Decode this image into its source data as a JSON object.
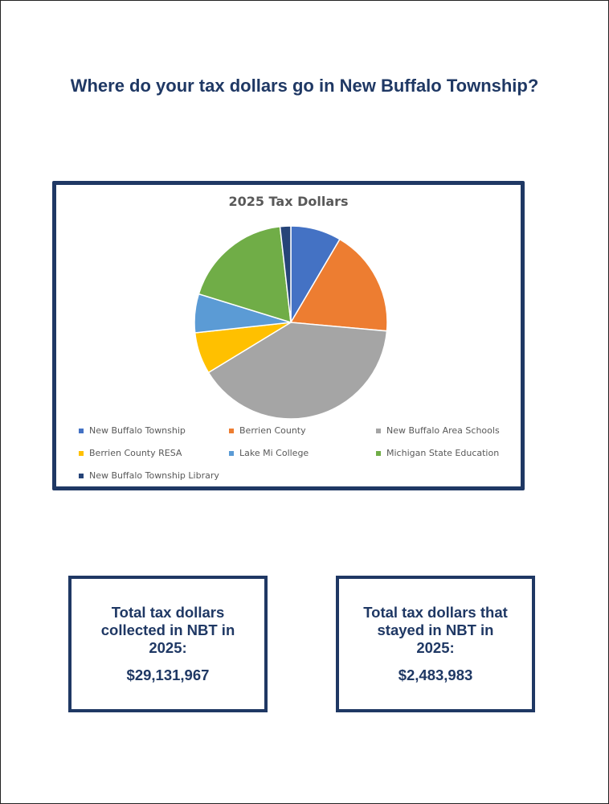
{
  "headline": "Where do your tax dollars go in New Buffalo Township?",
  "chart_data": {
    "type": "pie",
    "title": "2025 Tax Dollars",
    "categories": [
      "New Buffalo Township",
      "Berrien County",
      "New Buffalo Area Schools",
      "Berrien County RESA",
      "Lake Mi College",
      "Michigan State Education",
      "New Buffalo Township Library"
    ],
    "values": [
      8.5,
      18.0,
      40.0,
      7.0,
      6.5,
      18.5,
      1.8
    ],
    "value_units": "percent (estimated)",
    "colors": [
      "#4472c4",
      "#ed7d31",
      "#a5a5a5",
      "#ffc000",
      "#5b9bd5",
      "#70ad47",
      "#264478"
    ],
    "legend_position": "bottom"
  },
  "boxes": {
    "collected": {
      "label": "Total tax dollars collected in NBT in 2025:",
      "amount": "$29,131,967"
    },
    "stayed": {
      "label": "Total tax dollars that stayed in NBT in 2025:",
      "amount": "$2,483,983"
    }
  }
}
